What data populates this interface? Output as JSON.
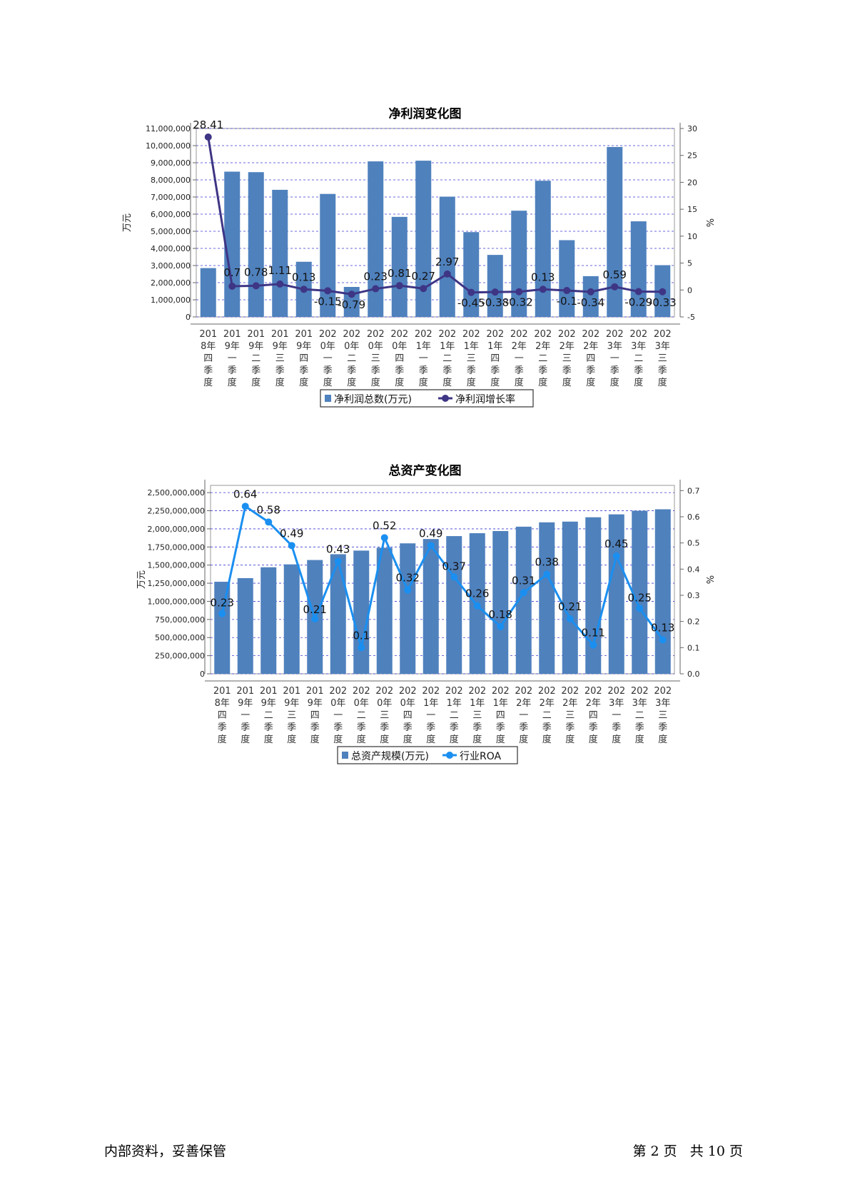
{
  "chart_data": [
    {
      "type": "bar",
      "title": "净利润变化图",
      "ylabel": "万元",
      "y2label": "%",
      "ylim": [
        0,
        11000000
      ],
      "y2lim": [
        -5,
        30
      ],
      "y_ticks": [
        "0",
        "1,000,000",
        "2,000,000",
        "3,000,000",
        "4,000,000",
        "5,000,000",
        "6,000,000",
        "7,000,000",
        "8,000,000",
        "9,000,000",
        "10,000,000",
        "11,000,000"
      ],
      "y2_ticks": [
        "-5",
        "0",
        "5",
        "10",
        "15",
        "20",
        "25",
        "30"
      ],
      "categories": [
        "2018年四季度",
        "2019年一季度",
        "2019年二季度",
        "2019年三季度",
        "2019年四季度",
        "2020年一季度",
        "2020年二季度",
        "2020年三季度",
        "2020年四季度",
        "2021年一季度",
        "2021年二季度",
        "2021年三季度",
        "2021年四季度",
        "2022年一季度",
        "2022年二季度",
        "2022年三季度",
        "2022年四季度",
        "2023年一季度",
        "2023年二季度",
        "2023年三季度"
      ],
      "category_lines": [
        [
          "201",
          "8年",
          "四",
          "季",
          "度"
        ],
        [
          "201",
          "9年",
          "一",
          "季",
          "度"
        ],
        [
          "201",
          "9年",
          "二",
          "季",
          "度"
        ],
        [
          "201",
          "9年",
          "三",
          "季",
          "度"
        ],
        [
          "201",
          "9年",
          "四",
          "季",
          "度"
        ],
        [
          "202",
          "0年",
          "一",
          "季",
          "度"
        ],
        [
          "202",
          "0年",
          "二",
          "季",
          "度"
        ],
        [
          "202",
          "0年",
          "三",
          "季",
          "度"
        ],
        [
          "202",
          "0年",
          "四",
          "季",
          "度"
        ],
        [
          "202",
          "1年",
          "一",
          "季",
          "度"
        ],
        [
          "202",
          "1年",
          "二",
          "季",
          "度"
        ],
        [
          "202",
          "1年",
          "三",
          "季",
          "度"
        ],
        [
          "202",
          "1年",
          "四",
          "季",
          "度"
        ],
        [
          "202",
          "2年",
          "一",
          "季",
          "度"
        ],
        [
          "202",
          "2年",
          "二",
          "季",
          "度"
        ],
        [
          "202",
          "2年",
          "三",
          "季",
          "度"
        ],
        [
          "202",
          "2年",
          "四",
          "季",
          "度"
        ],
        [
          "202",
          "3年",
          "一",
          "季",
          "度"
        ],
        [
          "202",
          "3年",
          "二",
          "季",
          "度"
        ],
        [
          "202",
          "3年",
          "三",
          "季",
          "度"
        ]
      ],
      "series": [
        {
          "name": "净利润总数(万元)",
          "kind": "bar",
          "axis": "left",
          "color": "#4f81bd",
          "values": [
            2850000,
            8480000,
            8450000,
            7420000,
            3220000,
            7180000,
            1750000,
            9080000,
            5840000,
            9120000,
            7020000,
            4950000,
            3620000,
            6200000,
            7950000,
            4480000,
            2380000,
            9920000,
            5580000,
            3020000
          ]
        },
        {
          "name": "净利润增长率",
          "kind": "line",
          "axis": "right",
          "color": "#3e3585",
          "values": [
            28.41,
            0.7,
            0.78,
            1.11,
            0.13,
            -0.15,
            -0.79,
            0.23,
            0.81,
            0.27,
            2.97,
            -0.45,
            -0.38,
            -0.32,
            0.13,
            -0.1,
            -0.34,
            0.59,
            -0.29,
            -0.33
          ],
          "labels": [
            "28.41",
            "0.7",
            "0.78",
            "1.11",
            "0.13",
            "-0.15",
            "-0.79",
            "0.23",
            "0.81",
            "0.27",
            "2.97",
            "-0.45",
            "-0.38",
            "-0.32",
            "0.13",
            "-0.1",
            "-0.34",
            "0.59",
            "-0.29",
            "-0.33"
          ]
        }
      ],
      "legend": [
        "净利润总数(万元)",
        "净利润增长率"
      ],
      "legend_position": "bottom",
      "grid": true
    },
    {
      "type": "bar",
      "title": "总资产变化图",
      "ylabel": "万元",
      "y2label": "%",
      "ylim": [
        0,
        2600000000
      ],
      "y2lim": [
        0,
        0.72
      ],
      "y_ticks": [
        "0",
        "250,000,000",
        "500,000,000",
        "750,000,000",
        "1,000,000,000",
        "1,250,000,000",
        "1,500,000,000",
        "1,750,000,000",
        "2,000,000,000",
        "2,250,000,000",
        "2,500,000,000"
      ],
      "y2_ticks": [
        "0.0",
        "0.1",
        "0.2",
        "0.3",
        "0.4",
        "0.5",
        "0.6",
        "0.7"
      ],
      "categories": [
        "2018年四季度",
        "2019年一季度",
        "2019年二季度",
        "2019年三季度",
        "2019年四季度",
        "2020年一季度",
        "2020年二季度",
        "2020年三季度",
        "2020年四季度",
        "2021年一季度",
        "2021年二季度",
        "2021年三季度",
        "2021年四季度",
        "2022年一季度",
        "2022年二季度",
        "2022年三季度",
        "2022年四季度",
        "2023年一季度",
        "2023年二季度",
        "2023年三季度"
      ],
      "category_lines": [
        [
          "201",
          "8年",
          "四",
          "季",
          "度"
        ],
        [
          "201",
          "9年",
          "一",
          "季",
          "度"
        ],
        [
          "201",
          "9年",
          "二",
          "季",
          "度"
        ],
        [
          "201",
          "9年",
          "三",
          "季",
          "度"
        ],
        [
          "201",
          "9年",
          "四",
          "季",
          "度"
        ],
        [
          "202",
          "0年",
          "一",
          "季",
          "度"
        ],
        [
          "202",
          "0年",
          "二",
          "季",
          "度"
        ],
        [
          "202",
          "0年",
          "三",
          "季",
          "度"
        ],
        [
          "202",
          "0年",
          "四",
          "季",
          "度"
        ],
        [
          "202",
          "1年",
          "一",
          "季",
          "度"
        ],
        [
          "202",
          "1年",
          "二",
          "季",
          "度"
        ],
        [
          "202",
          "1年",
          "三",
          "季",
          "度"
        ],
        [
          "202",
          "1年",
          "四",
          "季",
          "度"
        ],
        [
          "202",
          "2年",
          "一",
          "季",
          "度"
        ],
        [
          "202",
          "2年",
          "二",
          "季",
          "度"
        ],
        [
          "202",
          "2年",
          "三",
          "季",
          "度"
        ],
        [
          "202",
          "2年",
          "四",
          "季",
          "度"
        ],
        [
          "202",
          "3年",
          "一",
          "季",
          "度"
        ],
        [
          "202",
          "3年",
          "二",
          "季",
          "度"
        ],
        [
          "202",
          "3年",
          "三",
          "季",
          "度"
        ]
      ],
      "series": [
        {
          "name": "总资产规模(万元)",
          "kind": "bar",
          "axis": "left",
          "color": "#4f81bd",
          "values": [
            1270000000,
            1320000000,
            1470000000,
            1510000000,
            1570000000,
            1650000000,
            1700000000,
            1740000000,
            1800000000,
            1860000000,
            1900000000,
            1940000000,
            1970000000,
            2030000000,
            2090000000,
            2100000000,
            2160000000,
            2200000000,
            2250000000,
            2270000000
          ]
        },
        {
          "name": "行业ROA",
          "kind": "line",
          "axis": "right",
          "color": "#1a8ff0",
          "values": [
            0.23,
            0.64,
            0.58,
            0.49,
            0.21,
            0.43,
            0.1,
            0.52,
            0.32,
            0.49,
            0.37,
            0.26,
            0.18,
            0.31,
            0.38,
            0.21,
            0.11,
            0.45,
            0.25,
            0.13
          ],
          "labels": [
            "0.23",
            "0.64",
            "0.58",
            "0.49",
            "0.21",
            "0.43",
            "0.1",
            "0.52",
            "0.32",
            "0.49",
            "0.37",
            "0.26",
            "0.18",
            "0.31",
            "0.38",
            "0.21",
            "0.11",
            "0.45",
            "0.25",
            "0.13"
          ]
        }
      ],
      "legend": [
        "总资产规模(万元)",
        "行业ROA"
      ],
      "legend_position": "bottom",
      "grid": true
    }
  ],
  "footer": {
    "left": "内部资料，妥善保管",
    "right": "第 2 页   共 10 页"
  }
}
